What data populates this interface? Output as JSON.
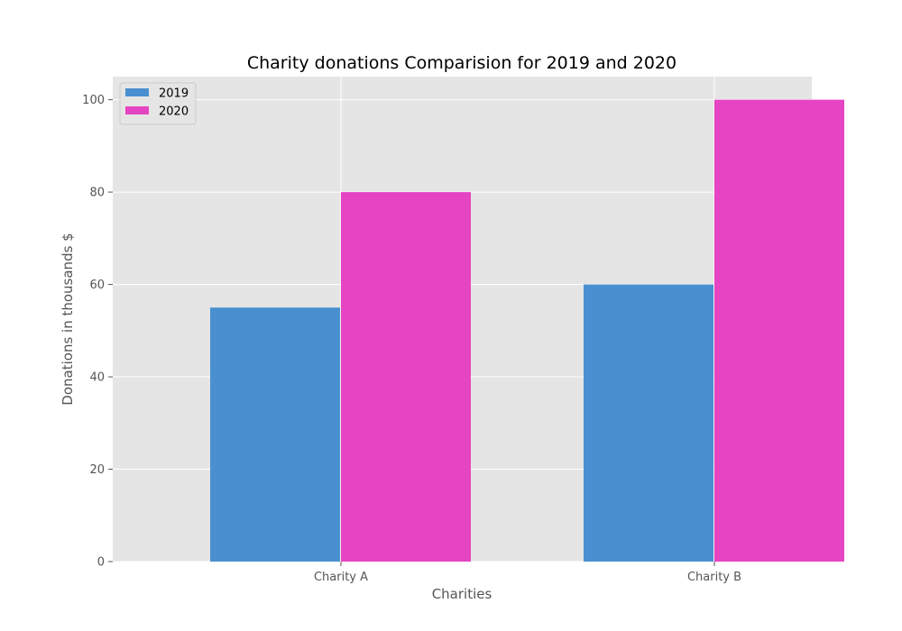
{
  "chart_data": {
    "type": "bar",
    "title": "Charity donations Comparision for 2019 and 2020",
    "xlabel": "Charities",
    "ylabel": "Donations in thousands $",
    "categories": [
      "Charity A",
      "Charity B"
    ],
    "series": [
      {
        "name": "2019",
        "values": [
          55,
          60
        ],
        "color": "#4a90d0"
      },
      {
        "name": "2020",
        "values": [
          80,
          100
        ],
        "color": "#e545c2"
      }
    ],
    "ylim": [
      0,
      105
    ],
    "yticks": [
      0,
      20,
      40,
      60,
      80,
      100
    ],
    "grid": true,
    "legend_position": "top-left",
    "background_color": "#e5e5e5",
    "grid_color": "#ffffff"
  }
}
